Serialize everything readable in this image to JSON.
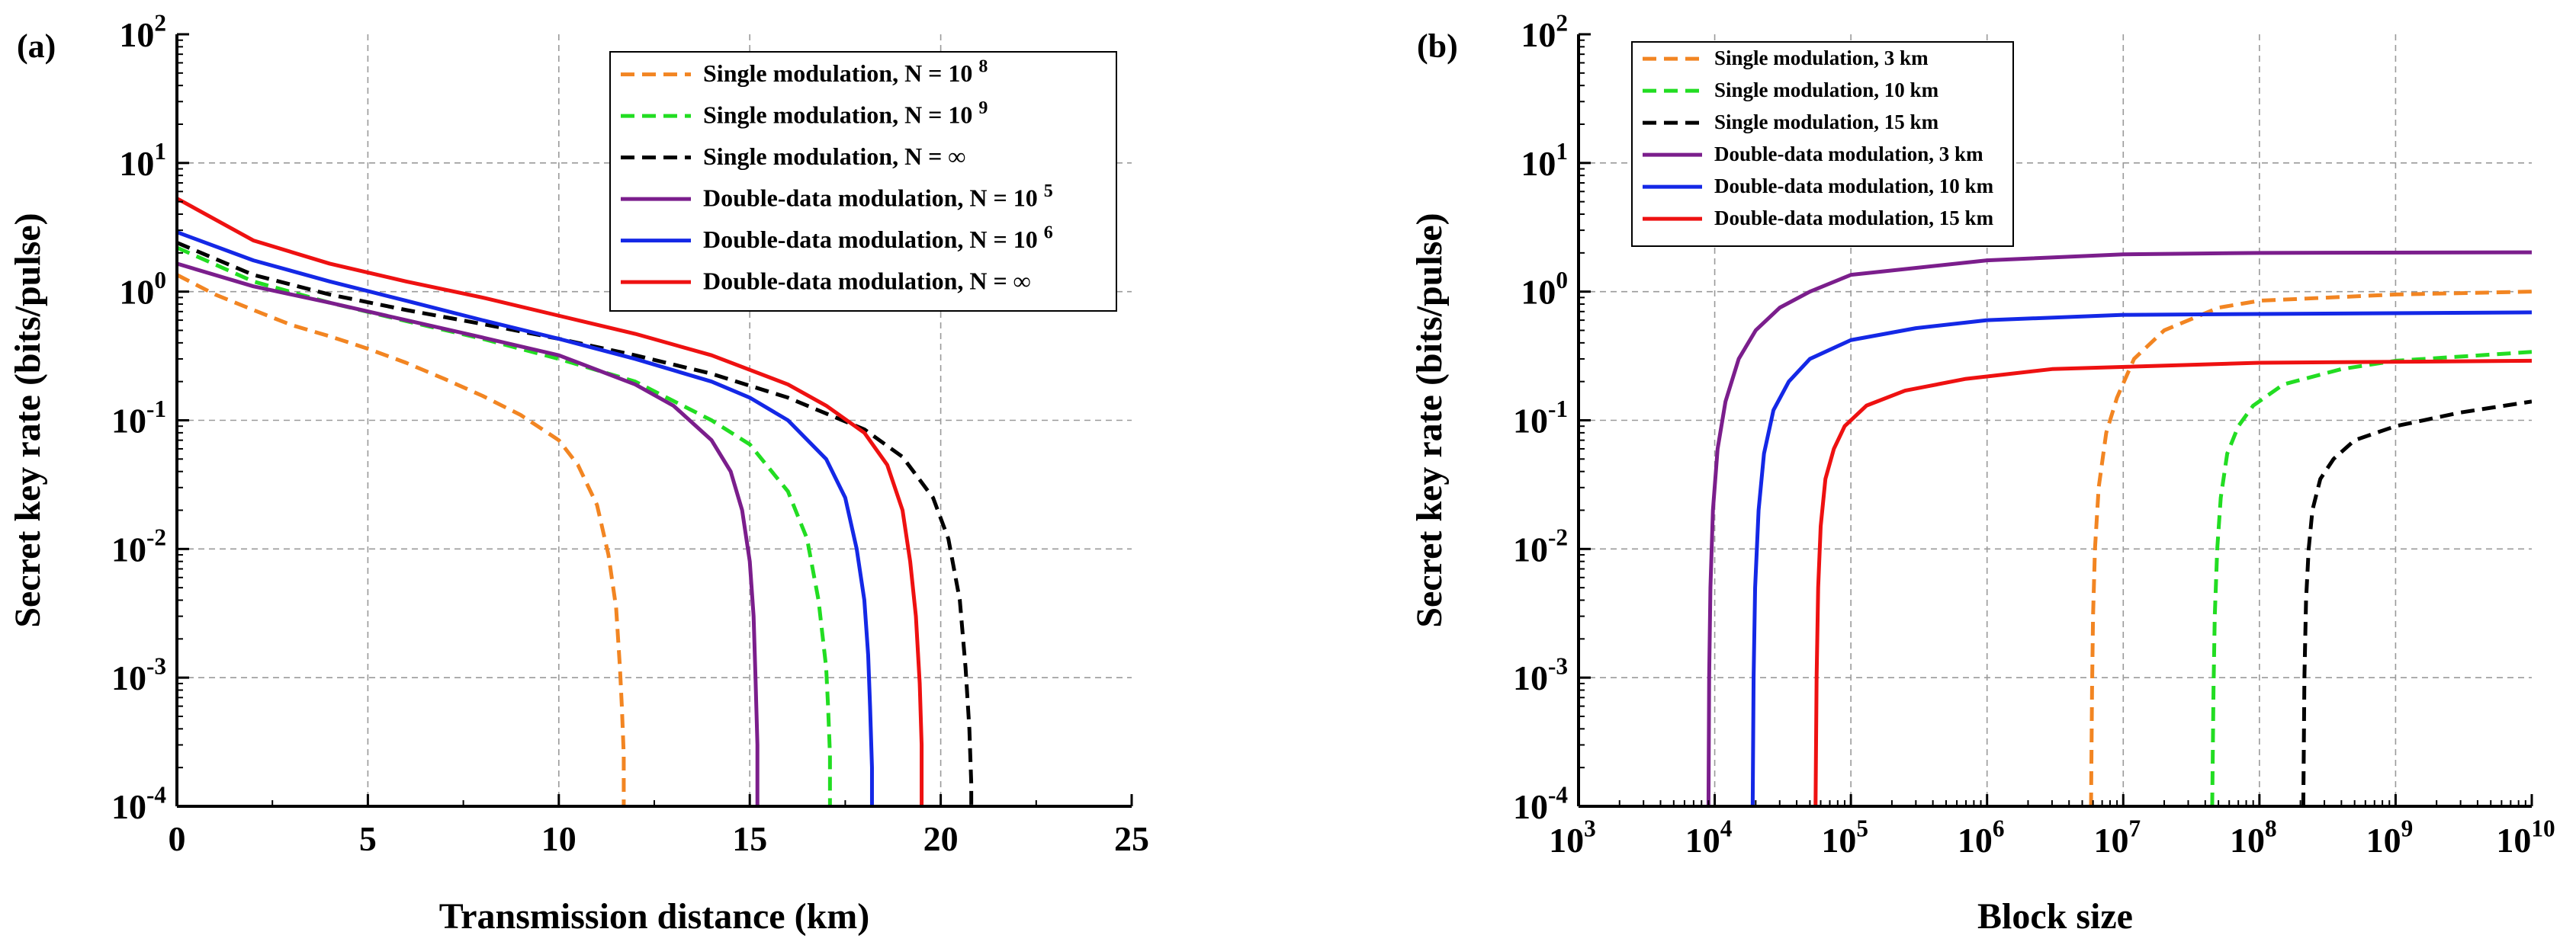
{
  "chart_data": [
    {
      "panel_label": "(a)",
      "type": "line",
      "xlabel": "Transmission distance (km)",
      "ylabel": "Secret key rate (bits/pulse)",
      "x_scale": "linear",
      "y_scale": "log",
      "xlim": [
        0,
        25
      ],
      "ylim": [
        0.0001,
        100
      ],
      "x_ticks": [
        0,
        5,
        10,
        15,
        20,
        25
      ],
      "x_tick_labels": [
        "0",
        "5",
        "10",
        "15",
        "20",
        "25"
      ],
      "y_ticks": [
        0.0001,
        0.001,
        0.01,
        0.1,
        1,
        10,
        100
      ],
      "y_tick_labels": [
        [
          "10",
          "-4"
        ],
        [
          "10",
          "-3"
        ],
        [
          "10",
          "-2"
        ],
        [
          "10",
          "-1"
        ],
        [
          "10",
          "0"
        ],
        [
          "10",
          "1"
        ],
        [
          "10",
          "2"
        ]
      ],
      "grid": true,
      "legend_position": "top-right",
      "series": [
        {
          "name": "Single modulation, N = 10 ⁸",
          "color": "#F28522",
          "dash": "dashed",
          "x": [
            0,
            1,
            2,
            3,
            4,
            5,
            6,
            7,
            8,
            9,
            10,
            10.5,
            11,
            11.3,
            11.5,
            11.6,
            11.65,
            11.7,
            11.7
          ],
          "y": [
            1.35,
            0.95,
            0.72,
            0.55,
            0.45,
            0.36,
            0.28,
            0.21,
            0.155,
            0.11,
            0.07,
            0.045,
            0.022,
            0.009,
            0.0035,
            0.0012,
            0.0006,
            0.00025,
            0.0001
          ]
        },
        {
          "name": "Single modulation, N = 10 ⁹",
          "color": "#22DD22",
          "dash": "dashed",
          "x": [
            0,
            2,
            4,
            6,
            8,
            10,
            12,
            14,
            15,
            16,
            16.5,
            16.8,
            17,
            17.05,
            17.1,
            17.1
          ],
          "y": [
            2.2,
            1.2,
            0.82,
            0.59,
            0.43,
            0.3,
            0.2,
            0.1,
            0.065,
            0.028,
            0.012,
            0.004,
            0.0012,
            0.0006,
            0.00025,
            0.0001
          ]
        },
        {
          "name": "Single modulation, N =  ∞",
          "color": "#000000",
          "dash": "dashed",
          "x": [
            0,
            2,
            4,
            6,
            8,
            10,
            12,
            14,
            16,
            18,
            19,
            19.8,
            20.2,
            20.5,
            20.65,
            20.75,
            20.8,
            20.8
          ],
          "y": [
            2.4,
            1.35,
            0.95,
            0.72,
            0.56,
            0.43,
            0.32,
            0.23,
            0.15,
            0.085,
            0.052,
            0.025,
            0.012,
            0.004,
            0.0012,
            0.0004,
            0.00015,
            0.0001
          ]
        },
        {
          "name": "Double-data modulation, N = 10 ⁵",
          "color": "#7B1E8C",
          "dash": "solid",
          "x": [
            0,
            2,
            4,
            6,
            8,
            10,
            12,
            13,
            14,
            14.5,
            14.8,
            15,
            15.1,
            15.15,
            15.2,
            15.2
          ],
          "y": [
            1.65,
            1.1,
            0.82,
            0.6,
            0.44,
            0.32,
            0.19,
            0.13,
            0.07,
            0.04,
            0.02,
            0.008,
            0.003,
            0.001,
            0.0003,
            0.0001
          ]
        },
        {
          "name": "Double-data modulation, N = 10 ⁶",
          "color": "#1428E6",
          "dash": "solid",
          "x": [
            0,
            2,
            4,
            6,
            8,
            10,
            12,
            14,
            15,
            16,
            17,
            17.5,
            17.8,
            18,
            18.1,
            18.15,
            18.2,
            18.2
          ],
          "y": [
            2.9,
            1.75,
            1.2,
            0.85,
            0.6,
            0.43,
            0.3,
            0.2,
            0.15,
            0.1,
            0.05,
            0.025,
            0.01,
            0.004,
            0.0015,
            0.0006,
            0.0002,
            0.0001
          ]
        },
        {
          "name": "Double-data modulation, N =  ∞",
          "color": "#EE1111",
          "dash": "solid",
          "x": [
            0,
            2,
            4,
            6,
            8,
            10,
            12,
            14,
            16,
            17,
            18,
            18.6,
            19,
            19.2,
            19.35,
            19.45,
            19.5,
            19.5
          ],
          "y": [
            5.3,
            2.5,
            1.65,
            1.2,
            0.9,
            0.65,
            0.47,
            0.32,
            0.19,
            0.13,
            0.08,
            0.045,
            0.02,
            0.008,
            0.003,
            0.0009,
            0.0003,
            0.0001
          ]
        }
      ]
    },
    {
      "panel_label": "(b)",
      "type": "line",
      "xlabel": "Block size",
      "ylabel": "Secret key rate (bits/pulse)",
      "x_scale": "log",
      "y_scale": "log",
      "xlim": [
        1000,
        10000000000
      ],
      "ylim": [
        0.0001,
        100
      ],
      "x_ticks": [
        1000,
        10000,
        100000,
        1000000,
        10000000,
        100000000,
        1000000000,
        10000000000
      ],
      "x_tick_labels": [
        [
          "10",
          "3"
        ],
        [
          "10",
          "4"
        ],
        [
          "10",
          "5"
        ],
        [
          "10",
          "6"
        ],
        [
          "10",
          "7"
        ],
        [
          "10",
          "8"
        ],
        [
          "10",
          "9"
        ],
        [
          "10",
          "10"
        ]
      ],
      "y_ticks": [
        0.0001,
        0.001,
        0.01,
        0.1,
        1,
        10,
        100
      ],
      "y_tick_labels": [
        [
          "10",
          "-4"
        ],
        [
          "10",
          "-3"
        ],
        [
          "10",
          "-2"
        ],
        [
          "10",
          "-1"
        ],
        [
          "10",
          "0"
        ],
        [
          "10",
          "1"
        ],
        [
          "10",
          "2"
        ]
      ],
      "grid": true,
      "legend_position": "top-left",
      "series": [
        {
          "name": "Single modulation, 3 km",
          "color": "#F28522",
          "dash": "dashed",
          "x": [
            5800000,
            5900000,
            6000000,
            6200000,
            6600000,
            7500000,
            9000000,
            12000000,
            20000000,
            50000000,
            100000000,
            1000000000,
            10000000000
          ],
          "y": [
            0.0001,
            0.0008,
            0.003,
            0.01,
            0.03,
            0.08,
            0.15,
            0.3,
            0.5,
            0.75,
            0.85,
            0.95,
            1.0
          ]
        },
        {
          "name": "Single modulation, 10 km",
          "color": "#22DD22",
          "dash": "dashed",
          "x": [
            45000000,
            46000000,
            47000000,
            49000000,
            52000000,
            58000000,
            70000000,
            90000000,
            150000000,
            400000000,
            1000000000,
            10000000000
          ],
          "y": [
            0.0001,
            0.0008,
            0.003,
            0.01,
            0.025,
            0.055,
            0.09,
            0.13,
            0.19,
            0.25,
            0.29,
            0.34
          ]
        },
        {
          "name": "Single modulation, 15 km",
          "color": "#000000",
          "dash": "dashed",
          "x": [
            210000000,
            214000000,
            220000000,
            230000000,
            245000000,
            280000000,
            350000000,
            500000000,
            1000000000,
            3000000000,
            10000000000
          ],
          "y": [
            0.0001,
            0.001,
            0.004,
            0.01,
            0.02,
            0.035,
            0.05,
            0.07,
            0.09,
            0.115,
            0.14
          ]
        },
        {
          "name": "Double-data modulation, 3 km",
          "color": "#7B1E8C",
          "dash": "solid",
          "x": [
            9000,
            9100,
            9300,
            9700,
            10500,
            12000,
            15000,
            20000,
            30000,
            50000,
            100000,
            1000000,
            10000000,
            100000000,
            10000000000
          ],
          "y": [
            0.0001,
            0.001,
            0.005,
            0.02,
            0.06,
            0.14,
            0.3,
            0.5,
            0.75,
            1.0,
            1.35,
            1.75,
            1.95,
            2.0,
            2.02
          ]
        },
        {
          "name": "Double-data modulation, 10 km",
          "color": "#1428E6",
          "dash": "solid",
          "x": [
            19000,
            19300,
            19800,
            21000,
            23000,
            27000,
            35000,
            50000,
            100000,
            300000,
            1000000,
            10000000,
            10000000000
          ],
          "y": [
            0.0001,
            0.001,
            0.005,
            0.02,
            0.055,
            0.12,
            0.2,
            0.3,
            0.42,
            0.52,
            0.6,
            0.66,
            0.69
          ]
        },
        {
          "name": "Double-data modulation, 15 km",
          "color": "#EE1111",
          "dash": "solid",
          "x": [
            55000,
            56000,
            57500,
            60000,
            65000,
            75000,
            90000,
            130000,
            250000,
            700000,
            3000000,
            100000000,
            10000000000
          ],
          "y": [
            0.0001,
            0.001,
            0.005,
            0.015,
            0.035,
            0.06,
            0.09,
            0.13,
            0.17,
            0.21,
            0.25,
            0.28,
            0.29
          ]
        }
      ]
    }
  ]
}
